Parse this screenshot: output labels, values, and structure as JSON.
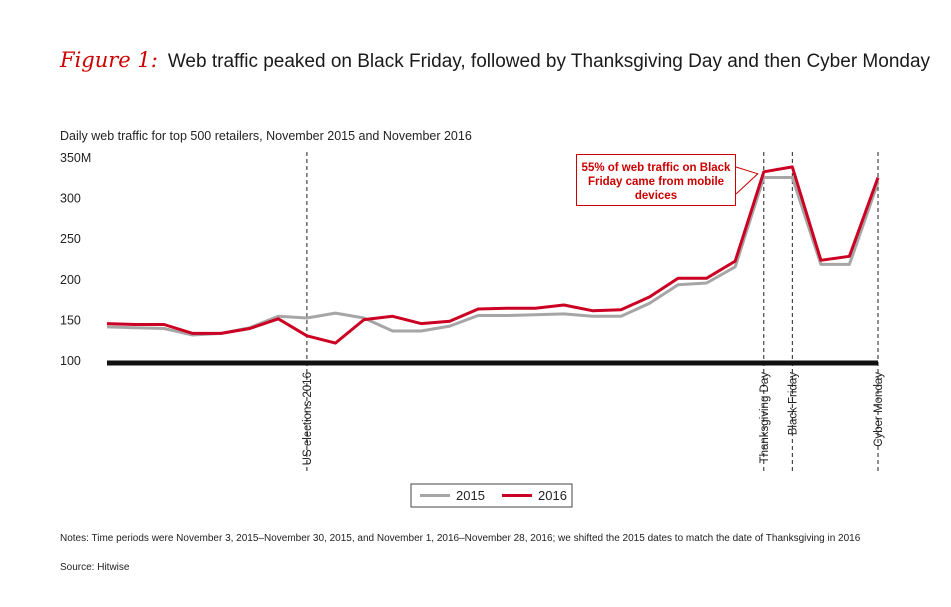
{
  "figure": {
    "label": "Figure 1:",
    "title": "Web traffic peaked on Black Friday, followed by Thanksgiving Day and then Cyber Monday"
  },
  "chart_data": {
    "type": "line",
    "title": "Daily web traffic for top 500 retailers, November 2015 and November 2016",
    "xlabel": "",
    "ylabel": "",
    "ylim": [
      100,
      350
    ],
    "y_ticks": [
      {
        "value": 350,
        "label": "350M"
      },
      {
        "value": 300,
        "label": "300"
      },
      {
        "value": 250,
        "label": "250"
      },
      {
        "value": 200,
        "label": "200"
      },
      {
        "value": 150,
        "label": "150"
      },
      {
        "value": 100,
        "label": "100"
      }
    ],
    "grid": false,
    "legend_position": "bottom-center",
    "x": [
      1,
      2,
      3,
      4,
      5,
      6,
      7,
      8,
      9,
      10,
      11,
      12,
      13,
      14,
      15,
      16,
      17,
      18,
      19,
      20,
      21,
      22,
      23,
      24,
      25,
      26,
      27,
      28
    ],
    "series": [
      {
        "name": "2015",
        "color": "#a6a6a6",
        "values": [
          142,
          141,
          140,
          132,
          134,
          141,
          155,
          153,
          159,
          153,
          137,
          137,
          143,
          156,
          156,
          157,
          158,
          155,
          155,
          171,
          194,
          196,
          216,
          326,
          326,
          219,
          219,
          320
        ]
      },
      {
        "name": "2016",
        "color": "#cc0022",
        "values": [
          146,
          145,
          145,
          134,
          134,
          140,
          152,
          131,
          122,
          151,
          155,
          146,
          149,
          164,
          165,
          165,
          169,
          162,
          163,
          179,
          202,
          202,
          223,
          333,
          339,
          224,
          229,
          326
        ]
      }
    ],
    "events": [
      {
        "x": 8,
        "label": "US elections 2016"
      },
      {
        "x": 24,
        "label": "Thanksgiving Day"
      },
      {
        "x": 25,
        "label": "Black Friday"
      },
      {
        "x": 28,
        "label": "Cyber Monday"
      }
    ],
    "annotation": "55% of web traffic on Black Friday came from mobile devices"
  },
  "notes": "Notes: Time periods were November 3, 2015–November 30, 2015, and November 1, 2016–November 28, 2016; we shifted the 2015 dates to match the date of Thanksgiving in 2016",
  "source": "Source: Hitwise"
}
